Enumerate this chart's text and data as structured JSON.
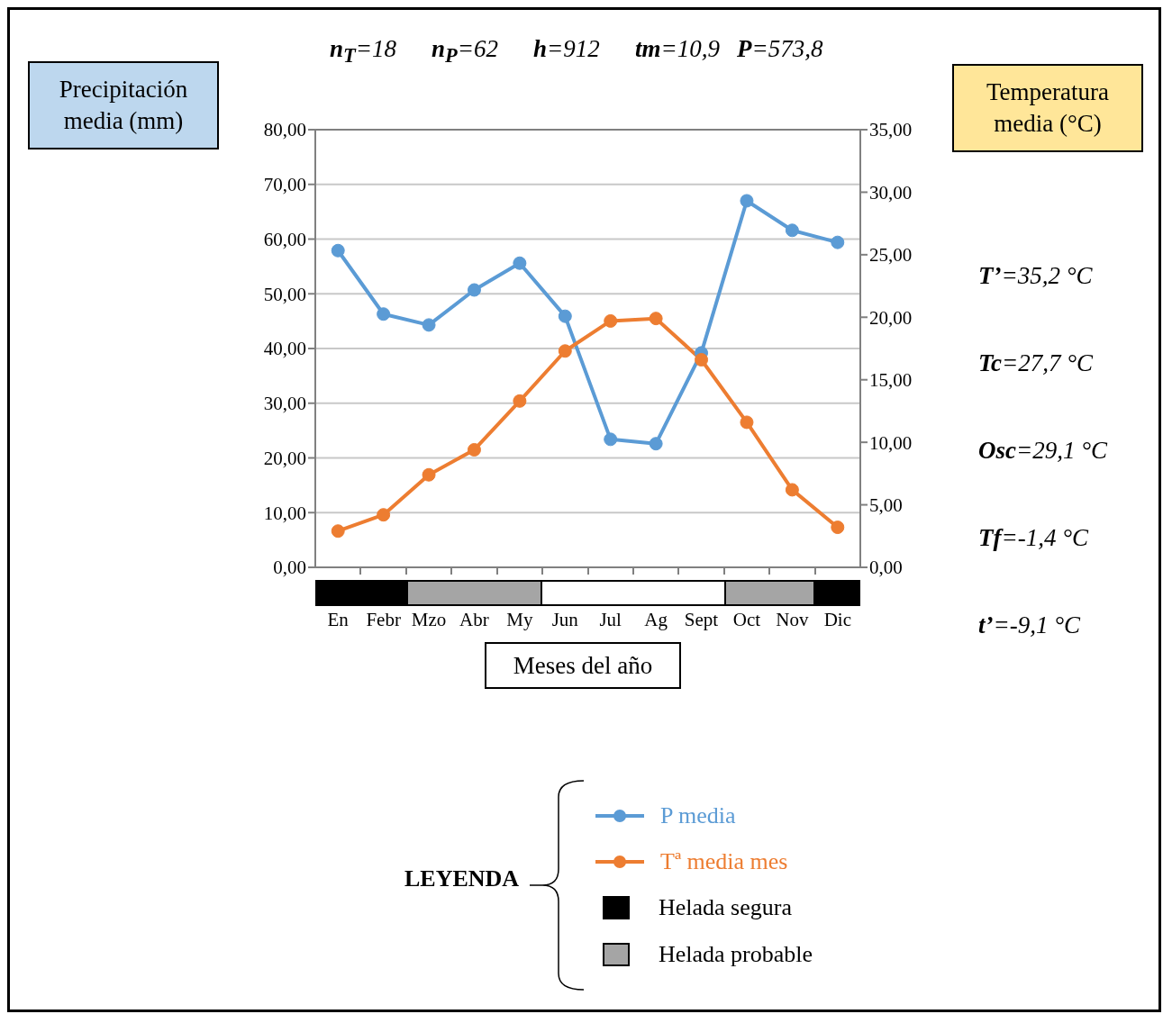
{
  "chart_data": {
    "type": "line",
    "xlabel": "Meses del año",
    "ylabel": "Precipitación media (mm)",
    "y2label": "Temperatura media (°C)",
    "legend_title": "LEYENDA",
    "categories": [
      "En",
      "Febr",
      "Mzo",
      "Abr",
      "My",
      "Jun",
      "Jul",
      "Ag",
      "Sept",
      "Oct",
      "Nov",
      "Dic"
    ],
    "series": [
      {
        "name": "P media",
        "color": "#5b9bd5",
        "values": [
          57.9,
          46.3,
          44.3,
          50.7,
          55.6,
          45.9,
          23.4,
          22.6,
          39.2,
          67.0,
          61.6,
          59.4
        ]
      },
      {
        "name": "Tª media mes",
        "color": "#ed7d31",
        "axis": "y2",
        "values": [
          2.9,
          4.2,
          7.4,
          9.4,
          13.3,
          17.3,
          19.7,
          19.9,
          16.6,
          11.6,
          6.2,
          3.2
        ]
      }
    ],
    "ylim": [
      0,
      80
    ],
    "yticks": [
      {
        "value": 0,
        "label": "0,00"
      },
      {
        "value": 10,
        "label": "10,00"
      },
      {
        "value": 20,
        "label": "20,00"
      },
      {
        "value": 30,
        "label": "30,00"
      },
      {
        "value": 40,
        "label": "40,00"
      },
      {
        "value": 50,
        "label": "50,00"
      },
      {
        "value": 60,
        "label": "60,00"
      },
      {
        "value": 70,
        "label": "70,00"
      },
      {
        "value": 80,
        "label": "80,00"
      }
    ],
    "y2lim": [
      0,
      35
    ],
    "y2ticks": [
      {
        "value": 0,
        "label": "0,00"
      },
      {
        "value": 5,
        "label": "5,00"
      },
      {
        "value": 10,
        "label": "10,00"
      },
      {
        "value": 15,
        "label": "15,00"
      },
      {
        "value": 20,
        "label": "20,00"
      },
      {
        "value": 25,
        "label": "25,00"
      },
      {
        "value": 30,
        "label": "30,00"
      },
      {
        "value": 35,
        "label": "35,00"
      }
    ],
    "annotations": [
      "n$_{T}$=18",
      "n$_{P}$=62",
      "h=912",
      "tm=10,9",
      "P=573,8",
      "T’=35,2 °C",
      "Tc=27,7 °C",
      "Osc=29,1 °C",
      "Tf=-1,4 °C",
      "t’=-9,1 °C",
      "Helada segura",
      "Helada probable"
    ],
    "grid": "y",
    "legend": "bottom",
    "marker": "circle",
    "line_style": "solid"
  }
}
